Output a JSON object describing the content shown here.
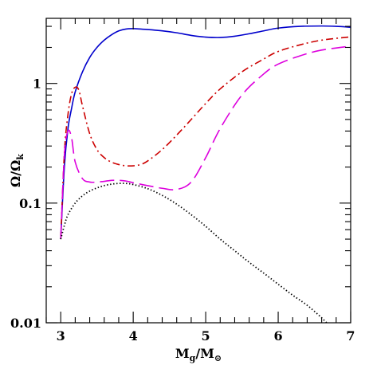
{
  "chart_data": {
    "type": "line",
    "xlabel": "Mg/M⊙",
    "ylabel": "Ω/Ωk",
    "xlabel_parts": {
      "main": "M",
      "sub": "g",
      "slash": "/M",
      "sub2": "⊙"
    },
    "ylabel_parts": {
      "main": "Ω/Ω",
      "sub": "k"
    },
    "xlim": [
      2.8,
      7.0
    ],
    "ylim": [
      0.01,
      3.5
    ],
    "ylog": true,
    "x_ticks": [
      {
        "value": 3,
        "label": "3"
      },
      {
        "value": 4,
        "label": "4"
      },
      {
        "value": 5,
        "label": "5"
      },
      {
        "value": 6,
        "label": "6"
      },
      {
        "value": 7,
        "label": "7"
      }
    ],
    "y_ticks": [
      {
        "value": 0.01,
        "label": "0.01"
      },
      {
        "value": 0.1,
        "label": "0.1"
      },
      {
        "value": 1,
        "label": "1"
      }
    ],
    "grid": false,
    "series": [
      {
        "style": "solid",
        "color": "#0000cc",
        "x": [
          3.0,
          3.05,
          3.1,
          3.15,
          3.2,
          3.3,
          3.4,
          3.5,
          3.6,
          3.7,
          3.8,
          3.9,
          4.0,
          4.2,
          4.4,
          4.6,
          4.8,
          5.0,
          5.2,
          5.4,
          5.6,
          5.8,
          6.0,
          6.3,
          6.6,
          6.8,
          7.0
        ],
        "y": [
          0.05,
          0.2,
          0.42,
          0.62,
          0.85,
          1.25,
          1.65,
          2.0,
          2.3,
          2.55,
          2.75,
          2.85,
          2.87,
          2.82,
          2.75,
          2.65,
          2.52,
          2.44,
          2.42,
          2.48,
          2.6,
          2.75,
          2.9,
          3.0,
          3.02,
          3.0,
          2.95
        ]
      },
      {
        "style": "dash-dot",
        "color": "#cc0000",
        "x": [
          3.0,
          3.05,
          3.1,
          3.15,
          3.2,
          3.25,
          3.3,
          3.4,
          3.5,
          3.6,
          3.7,
          3.8,
          3.9,
          4.0,
          4.1,
          4.2,
          4.4,
          4.6,
          4.8,
          5.0,
          5.2,
          5.5,
          5.8,
          6.0,
          6.3,
          6.6,
          7.0
        ],
        "y": [
          0.05,
          0.26,
          0.55,
          0.82,
          0.93,
          0.88,
          0.65,
          0.38,
          0.28,
          0.24,
          0.22,
          0.21,
          0.205,
          0.205,
          0.21,
          0.225,
          0.28,
          0.37,
          0.5,
          0.68,
          0.9,
          1.25,
          1.6,
          1.85,
          2.1,
          2.3,
          2.45
        ]
      },
      {
        "style": "long-dash",
        "color": "#dd00dd",
        "x": [
          3.0,
          3.05,
          3.1,
          3.15,
          3.2,
          3.3,
          3.4,
          3.5,
          3.6,
          3.7,
          3.8,
          3.9,
          4.0,
          4.2,
          4.4,
          4.6,
          4.8,
          5.0,
          5.2,
          5.5,
          5.8,
          6.0,
          6.3,
          6.6,
          7.0
        ],
        "y": [
          0.05,
          0.25,
          0.4,
          0.35,
          0.22,
          0.16,
          0.15,
          0.15,
          0.152,
          0.155,
          0.155,
          0.153,
          0.148,
          0.14,
          0.133,
          0.13,
          0.15,
          0.24,
          0.42,
          0.8,
          1.2,
          1.45,
          1.7,
          1.9,
          2.05
        ]
      },
      {
        "style": "dotted",
        "color": "#000000",
        "x": [
          3.0,
          3.05,
          3.1,
          3.2,
          3.3,
          3.4,
          3.5,
          3.6,
          3.7,
          3.8,
          3.9,
          4.0,
          4.2,
          4.4,
          4.6,
          4.8,
          5.0,
          5.2,
          5.4,
          5.6,
          5.8,
          6.0,
          6.2,
          6.4,
          6.6,
          6.7
        ],
        "y": [
          0.05,
          0.065,
          0.08,
          0.1,
          0.115,
          0.126,
          0.134,
          0.14,
          0.144,
          0.146,
          0.146,
          0.143,
          0.132,
          0.116,
          0.098,
          0.08,
          0.064,
          0.05,
          0.04,
          0.032,
          0.026,
          0.021,
          0.017,
          0.014,
          0.011,
          0.0095
        ]
      }
    ]
  }
}
